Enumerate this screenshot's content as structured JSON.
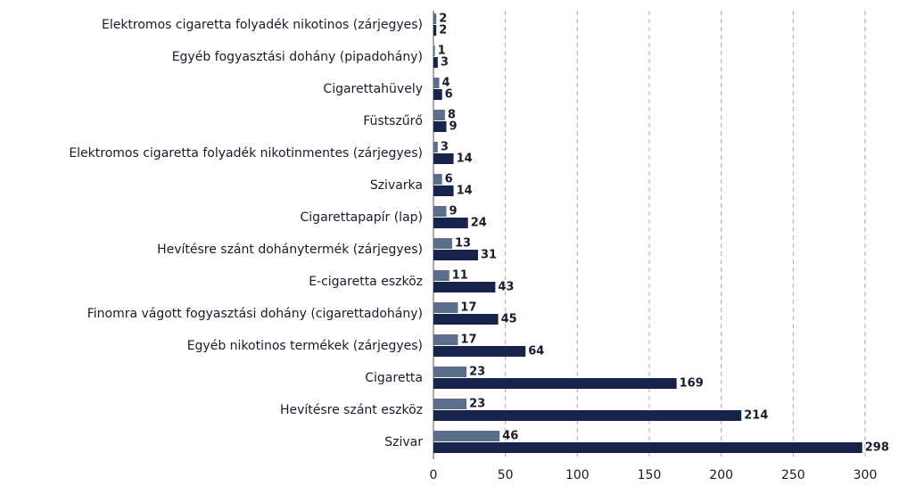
{
  "chart_data": {
    "type": "bar",
    "orientation": "horizontal",
    "categories": [
      "Elektromos cigaretta folyadék nikotinos (zárjegyes)",
      "Egyéb fogyasztási dohány (pipadohány)",
      "Cigarettahüvely",
      "Füstszűrő",
      "Elektromos cigaretta folyadék nikotinmentes (zárjegyes)",
      "Szivarka",
      "Cigarettapapír (lap)",
      "Hevítésre szánt dohánytermék (zárjegyes)",
      "E-cigaretta eszköz",
      "Finomra vágott fogyasztási dohány (cigarettadohány)",
      "Egyéb nikotinos termékek (zárjegyes)",
      "Cigaretta",
      "Hevítésre szánt eszköz",
      "Szivar"
    ],
    "series": [
      {
        "color": "#5b6e8c",
        "values": [
          2,
          1,
          4,
          8,
          3,
          6,
          9,
          13,
          11,
          17,
          17,
          23,
          23,
          46
        ]
      },
      {
        "color": "#17234a",
        "values": [
          2,
          3,
          6,
          9,
          14,
          14,
          24,
          31,
          43,
          45,
          64,
          169,
          214,
          298
        ]
      }
    ],
    "xlim": [
      0,
      300
    ],
    "xticks": [
      0,
      50,
      100,
      150,
      200,
      250,
      300
    ],
    "grid": true
  }
}
